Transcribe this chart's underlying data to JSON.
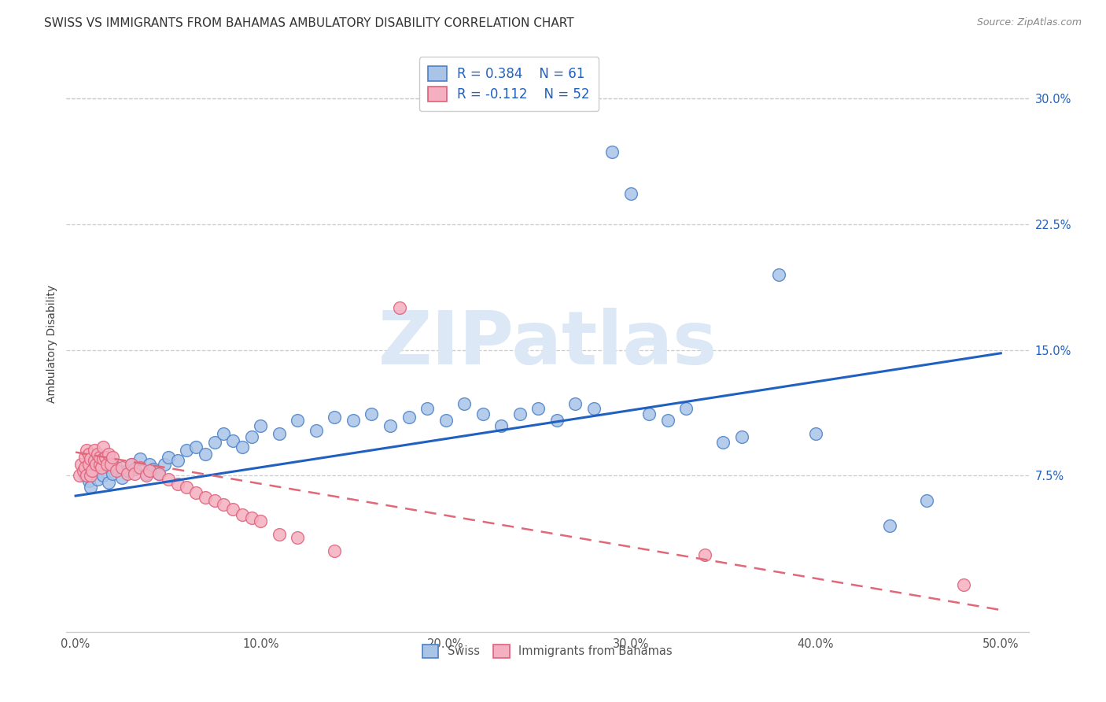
{
  "title": "SWISS VS IMMIGRANTS FROM BAHAMAS AMBULATORY DISABILITY CORRELATION CHART",
  "source": "Source: ZipAtlas.com",
  "ylabel": "Ambulatory Disability",
  "xlim": [
    -0.005,
    0.515
  ],
  "ylim": [
    -0.018,
    0.325
  ],
  "xticks": [
    0.0,
    0.1,
    0.2,
    0.3,
    0.4,
    0.5
  ],
  "xticklabels": [
    "0.0%",
    "10.0%",
    "20.0%",
    "30.0%",
    "40.0%",
    "50.0%"
  ],
  "yticks": [
    0.075,
    0.15,
    0.225,
    0.3
  ],
  "yticklabels": [
    "7.5%",
    "15.0%",
    "22.5%",
    "30.0%"
  ],
  "color_swiss": "#aac4e8",
  "color_immigrants": "#f4afc0",
  "color_swiss_edge": "#4a80c8",
  "color_immigrants_edge": "#e0607a",
  "color_swiss_line": "#2060c0",
  "color_immigrants_line": "#e06878",
  "watermark_text": "ZIPatlas",
  "watermark_color": "#dce8f5",
  "grid_color": "#cccccc",
  "background_color": "#ffffff",
  "title_fontsize": 11,
  "axis_label_fontsize": 10,
  "tick_fontsize": 10.5,
  "legend_fontsize": 12,
  "swiss_line_start_y": 0.063,
  "swiss_line_end_y": 0.148,
  "immig_line_start_y": 0.089,
  "immig_line_end_y": -0.005,
  "swiss_x": [
    0.005,
    0.007,
    0.008,
    0.01,
    0.012,
    0.013,
    0.015,
    0.016,
    0.018,
    0.02,
    0.022,
    0.025,
    0.028,
    0.03,
    0.032,
    0.035,
    0.038,
    0.04,
    0.042,
    0.045,
    0.048,
    0.05,
    0.055,
    0.06,
    0.065,
    0.07,
    0.075,
    0.08,
    0.085,
    0.09,
    0.095,
    0.1,
    0.11,
    0.12,
    0.13,
    0.14,
    0.15,
    0.16,
    0.17,
    0.18,
    0.19,
    0.2,
    0.21,
    0.22,
    0.23,
    0.24,
    0.25,
    0.26,
    0.27,
    0.28,
    0.29,
    0.3,
    0.31,
    0.32,
    0.33,
    0.35,
    0.36,
    0.38,
    0.4,
    0.44,
    0.46
  ],
  "swiss_y": [
    0.075,
    0.072,
    0.068,
    0.078,
    0.073,
    0.08,
    0.075,
    0.082,
    0.071,
    0.076,
    0.08,
    0.074,
    0.078,
    0.082,
    0.079,
    0.085,
    0.076,
    0.082,
    0.079,
    0.076,
    0.082,
    0.086,
    0.084,
    0.09,
    0.092,
    0.088,
    0.095,
    0.1,
    0.096,
    0.092,
    0.098,
    0.105,
    0.1,
    0.108,
    0.102,
    0.11,
    0.108,
    0.112,
    0.105,
    0.11,
    0.115,
    0.108,
    0.118,
    0.112,
    0.105,
    0.112,
    0.115,
    0.108,
    0.118,
    0.115,
    0.268,
    0.243,
    0.112,
    0.108,
    0.115,
    0.095,
    0.098,
    0.195,
    0.1,
    0.045,
    0.06
  ],
  "immig_x": [
    0.002,
    0.003,
    0.004,
    0.005,
    0.005,
    0.006,
    0.006,
    0.007,
    0.007,
    0.008,
    0.008,
    0.009,
    0.01,
    0.01,
    0.011,
    0.012,
    0.013,
    0.013,
    0.014,
    0.015,
    0.015,
    0.016,
    0.017,
    0.018,
    0.019,
    0.02,
    0.022,
    0.025,
    0.028,
    0.03,
    0.032,
    0.035,
    0.038,
    0.04,
    0.045,
    0.05,
    0.055,
    0.06,
    0.065,
    0.07,
    0.075,
    0.08,
    0.085,
    0.09,
    0.095,
    0.1,
    0.11,
    0.12,
    0.14,
    0.175,
    0.34,
    0.48
  ],
  "immig_y": [
    0.075,
    0.082,
    0.078,
    0.086,
    0.08,
    0.075,
    0.09,
    0.082,
    0.088,
    0.075,
    0.085,
    0.078,
    0.084,
    0.09,
    0.082,
    0.088,
    0.082,
    0.086,
    0.08,
    0.085,
    0.092,
    0.086,
    0.082,
    0.088,
    0.082,
    0.086,
    0.078,
    0.08,
    0.076,
    0.082,
    0.076,
    0.08,
    0.075,
    0.078,
    0.076,
    0.073,
    0.07,
    0.068,
    0.065,
    0.062,
    0.06,
    0.058,
    0.055,
    0.052,
    0.05,
    0.048,
    0.04,
    0.038,
    0.03,
    0.175,
    0.028,
    0.01
  ]
}
